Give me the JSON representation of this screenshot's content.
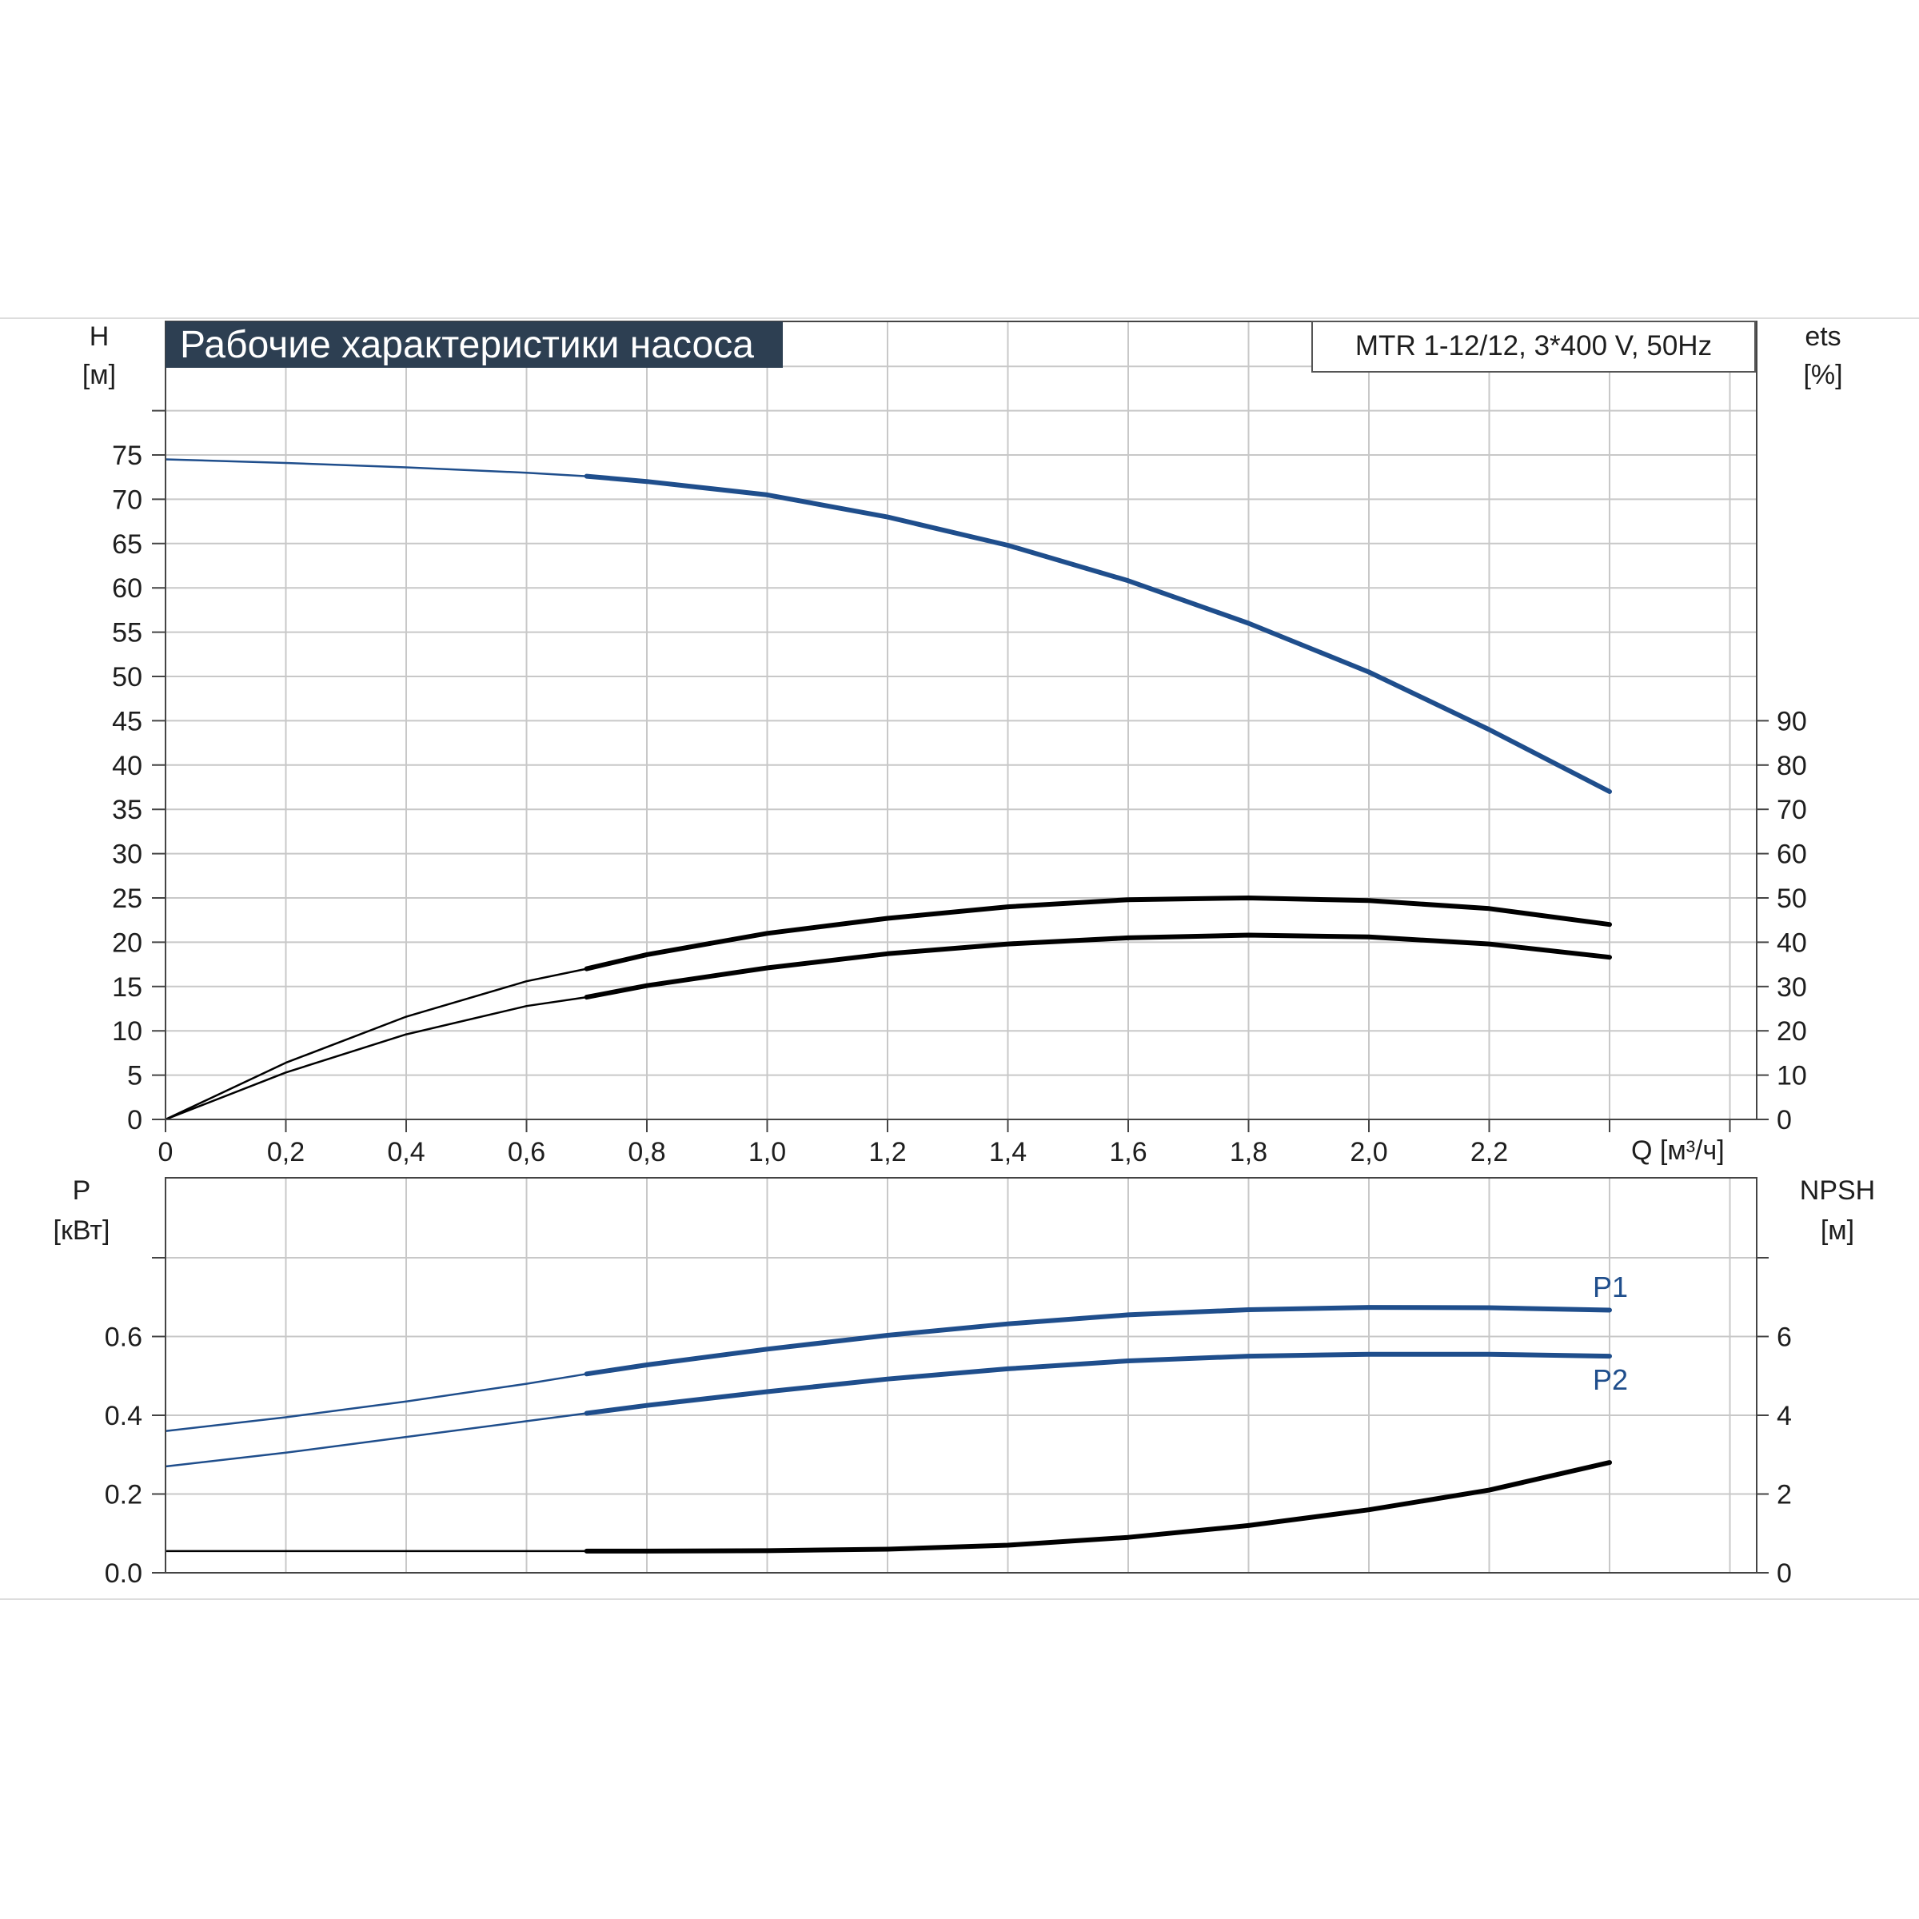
{
  "title": "Рабочие характеристики насоса",
  "model": "MTR 1-12/12, 3*400 V, 50Hz",
  "colors": {
    "blue": "#1f4e8c",
    "black": "#000000",
    "grid": "#c8c8c8",
    "title_bg": "#2d3f52"
  },
  "chart_data": [
    {
      "type": "line",
      "xlabel": "Q [м³/ч]",
      "xlim": [
        0,
        2.6
      ],
      "x_ticks": [
        "0",
        "0,2",
        "0,4",
        "0,6",
        "0,8",
        "1,0",
        "1,2",
        "1,4",
        "1,6",
        "1,8",
        "2,0",
        "2,2"
      ],
      "y_left": {
        "label": "H",
        "unit": "[м]",
        "ticks": [
          "0",
          "5",
          "10",
          "15",
          "20",
          "25",
          "30",
          "35",
          "40",
          "45",
          "50",
          "55",
          "60",
          "65",
          "70",
          "75"
        ],
        "ylim": [
          0,
          75
        ]
      },
      "y_right": {
        "label": "ets",
        "unit": "[%]",
        "ticks": [
          "0",
          "10",
          "20",
          "30",
          "40",
          "50",
          "60",
          "70",
          "80",
          "90"
        ],
        "ylim": [
          0,
          150
        ]
      },
      "grid": true,
      "series": [
        {
          "axis": "left",
          "color": "blue",
          "x": [
            0,
            0.2,
            0.4,
            0.6,
            0.7,
            0.8,
            1.0,
            1.2,
            1.4,
            1.6,
            1.8,
            2.0,
            2.2,
            2.4
          ],
          "y": [
            74.5,
            74.1,
            73.6,
            73.0,
            72.6,
            72.0,
            70.5,
            68.0,
            64.8,
            60.8,
            56.0,
            50.5,
            44.0,
            37.0
          ]
        },
        {
          "axis": "right",
          "color": "black",
          "x": [
            0,
            0.2,
            0.4,
            0.6,
            0.7,
            0.8,
            1.0,
            1.2,
            1.4,
            1.6,
            1.8,
            2.0,
            2.2,
            2.4
          ],
          "y": [
            0,
            12.8,
            23.2,
            31.2,
            34.0,
            37.2,
            42.0,
            45.4,
            48.0,
            49.6,
            50.0,
            49.4,
            47.6,
            44.0
          ]
        },
        {
          "axis": "right",
          "color": "black",
          "x": [
            0,
            0.2,
            0.4,
            0.6,
            0.7,
            0.8,
            1.0,
            1.2,
            1.4,
            1.6,
            1.8,
            2.0,
            2.2,
            2.4
          ],
          "y": [
            0,
            10.6,
            19.2,
            25.6,
            27.6,
            30.2,
            34.2,
            37.4,
            39.6,
            41.0,
            41.6,
            41.2,
            39.6,
            36.6
          ]
        }
      ]
    },
    {
      "type": "line",
      "xlim": [
        0,
        2.6
      ],
      "y_left": {
        "label": "P",
        "unit": "[кВт]",
        "ticks": [
          "0.0",
          "0.2",
          "0.4",
          "0.6"
        ],
        "ylim": [
          0,
          0.8
        ]
      },
      "y_right": {
        "label": "NPSH",
        "unit": "[м]",
        "ticks": [
          "0",
          "2",
          "4",
          "6"
        ],
        "ylim": [
          0,
          8
        ]
      },
      "grid": true,
      "series": [
        {
          "name": "P1",
          "axis": "left",
          "color": "blue",
          "x": [
            0,
            0.2,
            0.4,
            0.6,
            0.7,
            0.8,
            1.0,
            1.2,
            1.4,
            1.6,
            1.8,
            2.0,
            2.2,
            2.4
          ],
          "y": [
            0.36,
            0.395,
            0.435,
            0.48,
            0.505,
            0.528,
            0.568,
            0.603,
            0.632,
            0.655,
            0.668,
            0.674,
            0.673,
            0.667
          ]
        },
        {
          "name": "P2",
          "axis": "left",
          "color": "blue",
          "x": [
            0,
            0.2,
            0.4,
            0.6,
            0.7,
            0.8,
            1.0,
            1.2,
            1.4,
            1.6,
            1.8,
            2.0,
            2.2,
            2.4
          ],
          "y": [
            0.27,
            0.305,
            0.345,
            0.385,
            0.405,
            0.425,
            0.46,
            0.492,
            0.518,
            0.538,
            0.55,
            0.555,
            0.555,
            0.55
          ]
        },
        {
          "axis": "right",
          "color": "black",
          "x": [
            0,
            0.2,
            0.4,
            0.6,
            0.7,
            0.8,
            1.0,
            1.2,
            1.4,
            1.6,
            1.8,
            2.0,
            2.2,
            2.4
          ],
          "y": [
            0.55,
            0.55,
            0.55,
            0.55,
            0.55,
            0.55,
            0.56,
            0.6,
            0.7,
            0.9,
            1.2,
            1.6,
            2.1,
            2.8
          ]
        }
      ]
    }
  ]
}
